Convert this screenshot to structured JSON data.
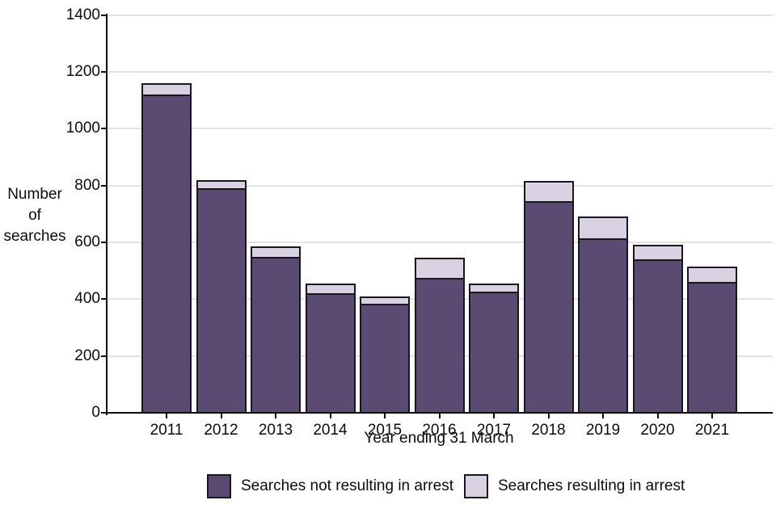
{
  "chart_data": {
    "type": "bar",
    "stacked": true,
    "title": "",
    "xlabel": "Year ending 31 March",
    "ylabel": "Number of searches",
    "ylabel_lines": [
      "Number",
      "of",
      "searches"
    ],
    "categories": [
      "2011",
      "2012",
      "2013",
      "2014",
      "2015",
      "2016",
      "2017",
      "2018",
      "2019",
      "2020",
      "2021"
    ],
    "series": [
      {
        "name": "Searches not resulting in arrest",
        "color": "#5b4a72",
        "values": [
          1120,
          790,
          550,
          420,
          385,
          475,
          425,
          745,
          615,
          540,
          460
        ]
      },
      {
        "name": "Searches resulting in arrest",
        "color": "#d8d2e3",
        "values": [
          40,
          30,
          35,
          35,
          25,
          70,
          30,
          70,
          75,
          50,
          55
        ]
      }
    ],
    "totals": [
      1160,
      820,
      585,
      455,
      410,
      545,
      455,
      815,
      690,
      590,
      515
    ],
    "ylim": [
      0,
      1400
    ],
    "yticks": [
      0,
      200,
      400,
      600,
      800,
      1000,
      1200,
      1400
    ],
    "grid": true,
    "legend_position": "bottom",
    "colors": {
      "bar_border": "#1a161f",
      "axis": "#0b0c0c",
      "gridline": "#e2e2e2",
      "text": "#0b0c0c",
      "background": "#ffffff"
    }
  }
}
